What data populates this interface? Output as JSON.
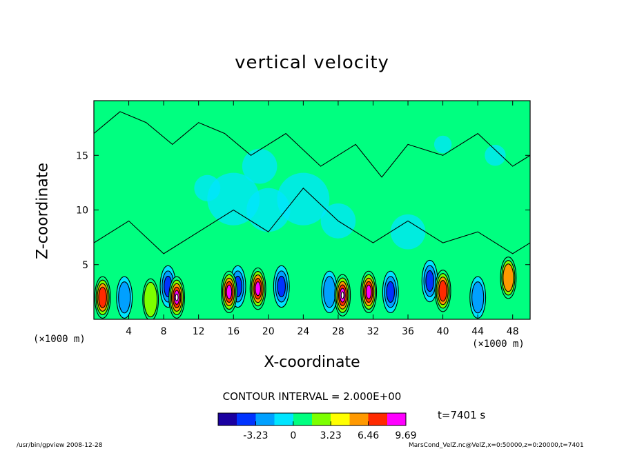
{
  "chart_data": {
    "type": "heatmap",
    "title": "vertical velocity",
    "xlabel": "X-coordinate",
    "ylabel": "Z-coordinate",
    "x_unit_label": "(×1000 m)",
    "xlim": [
      0,
      50
    ],
    "ylim": [
      0,
      20
    ],
    "x_ticks": [
      4,
      8,
      12,
      16,
      20,
      24,
      28,
      32,
      36,
      40,
      44,
      48
    ],
    "y_ticks": [
      5,
      10,
      15
    ],
    "contour_interval_label": "CONTOUR INTERVAL = 2.000E+00",
    "colorbar": {
      "ticks": [
        "-3.23",
        "0",
        "3.23",
        "6.46",
        "9.69"
      ],
      "range": [
        -6.46,
        9.69
      ],
      "colormap": [
        "#1a00a0",
        "#0033ff",
        "#00a0ff",
        "#00e5ff",
        "#00ff80",
        "#7cff00",
        "#ffff00",
        "#ff9900",
        "#ff2a00",
        "#ff00ff"
      ]
    },
    "time_label": "t=7401 s",
    "updraft_cores": [
      {
        "x": 1.0,
        "z": 2.0,
        "w": 7.5
      },
      {
        "x": 6.5,
        "z": 1.8,
        "w": 4.5
      },
      {
        "x": 9.5,
        "z": 2.0,
        "w": 9.7
      },
      {
        "x": 15.5,
        "z": 2.5,
        "w": 9.0
      },
      {
        "x": 18.8,
        "z": 2.8,
        "w": 8.5
      },
      {
        "x": 28.5,
        "z": 2.2,
        "w": 9.7
      },
      {
        "x": 31.5,
        "z": 2.5,
        "w": 8.5
      },
      {
        "x": 40.0,
        "z": 2.6,
        "w": 7.0
      },
      {
        "x": 47.5,
        "z": 3.8,
        "w": 5.0
      }
    ],
    "downdraft_cores": [
      {
        "x": 3.5,
        "z": 2.0,
        "w": -4.0
      },
      {
        "x": 8.5,
        "z": 3.0,
        "w": -5.0
      },
      {
        "x": 16.5,
        "z": 3.0,
        "w": -5.0
      },
      {
        "x": 21.5,
        "z": 3.0,
        "w": -4.5
      },
      {
        "x": 27.0,
        "z": 2.5,
        "w": -4.0
      },
      {
        "x": 34.0,
        "z": 2.5,
        "w": -4.5
      },
      {
        "x": 38.5,
        "z": 3.5,
        "w": -5.5
      },
      {
        "x": 44.0,
        "z": 2.0,
        "w": -4.0
      }
    ]
  },
  "footer": {
    "left": "/usr/bin/gpview   2008-12-28",
    "right": "MarsCond_VelZ.nc@VelZ,x=0:50000,z=0:20000,t=7401"
  }
}
